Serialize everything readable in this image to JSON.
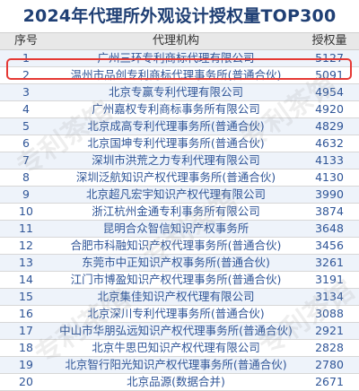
{
  "title": "2024年代理所外观设计授权量TOP300",
  "headers": {
    "rank": "序号",
    "name": "代理机构",
    "count": "授权量"
  },
  "highlight_color": "#e53935",
  "watermark": "专利茶馆",
  "rows": [
    {
      "rank": "1",
      "name": "广州三环专利商标代理有限公司",
      "count": "5127"
    },
    {
      "rank": "2",
      "name": "温州市品创专利商标代理事务所(普通合伙)",
      "count": "5091"
    },
    {
      "rank": "3",
      "name": "北京专赢专利代理有限公司",
      "count": "4954"
    },
    {
      "rank": "4",
      "name": "广州嘉权专利商标事务所有限公司",
      "count": "4920"
    },
    {
      "rank": "5",
      "name": "北京成高专利代理事务所(普通合伙)",
      "count": "4829"
    },
    {
      "rank": "6",
      "name": "北京国坤专利代理事务所(普通合伙)",
      "count": "4632"
    },
    {
      "rank": "7",
      "name": "深圳市洪荒之力专利代理有限公司",
      "count": "4133"
    },
    {
      "rank": "8",
      "name": "深圳泛航知识产权代理事务所(普通合伙)",
      "count": "4130"
    },
    {
      "rank": "9",
      "name": "北京超凡宏宇知识产权代理有限公司",
      "count": "3990"
    },
    {
      "rank": "10",
      "name": "浙江杭州金通专利事务所有限公司",
      "count": "3874"
    },
    {
      "rank": "11",
      "name": "昆明合众智信知识产权事务所",
      "count": "3648"
    },
    {
      "rank": "12",
      "name": "合肥市科融知识产权代理事务所(普通合伙)",
      "count": "3456"
    },
    {
      "rank": "13",
      "name": "东莞市中正知识产权事务所(普通合伙)",
      "count": "3261"
    },
    {
      "rank": "14",
      "name": "江门市博盈知识产权代理事务所(普通合伙)",
      "count": "3191"
    },
    {
      "rank": "15",
      "name": "北京集佳知识产权代理有限公司",
      "count": "3134"
    },
    {
      "rank": "16",
      "name": "北京深川专利代理事务所(普通合伙)",
      "count": "3088"
    },
    {
      "rank": "17",
      "name": "中山市华朋弘远知识产权代理事务所(普通合伙)",
      "count": "2921"
    },
    {
      "rank": "18",
      "name": "北京牛思巴知识产权代理有限公司",
      "count": "2828"
    },
    {
      "rank": "19",
      "name": "北京智行阳光知识产权代理事务所(普通合伙)",
      "count": "2780"
    },
    {
      "rank": "20",
      "name": "北京品源(数据合并)",
      "count": "2671"
    }
  ]
}
